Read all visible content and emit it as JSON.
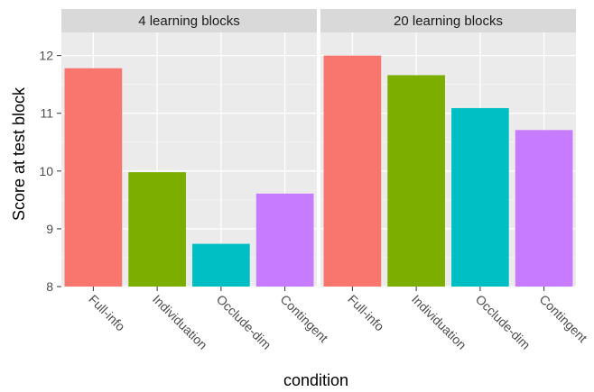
{
  "chart_data": {
    "type": "bar",
    "xlabel": "condition",
    "ylabel": "Score at test block",
    "ylim": [
      8,
      12.4
    ],
    "yticks": [
      8,
      9,
      10,
      11,
      12
    ],
    "grid": true,
    "legend": "none",
    "categories": [
      "Full-info",
      "Individuation",
      "Occlude-dim",
      "Contingent"
    ],
    "colors": [
      "#F8766D",
      "#7CAE00",
      "#00BFC4",
      "#C77CFF"
    ],
    "panels": [
      {
        "title": "4 learning blocks",
        "values": [
          11.78,
          9.98,
          8.74,
          9.61
        ]
      },
      {
        "title": "20 learning blocks",
        "values": [
          12.0,
          11.66,
          11.09,
          10.71
        ]
      }
    ]
  }
}
